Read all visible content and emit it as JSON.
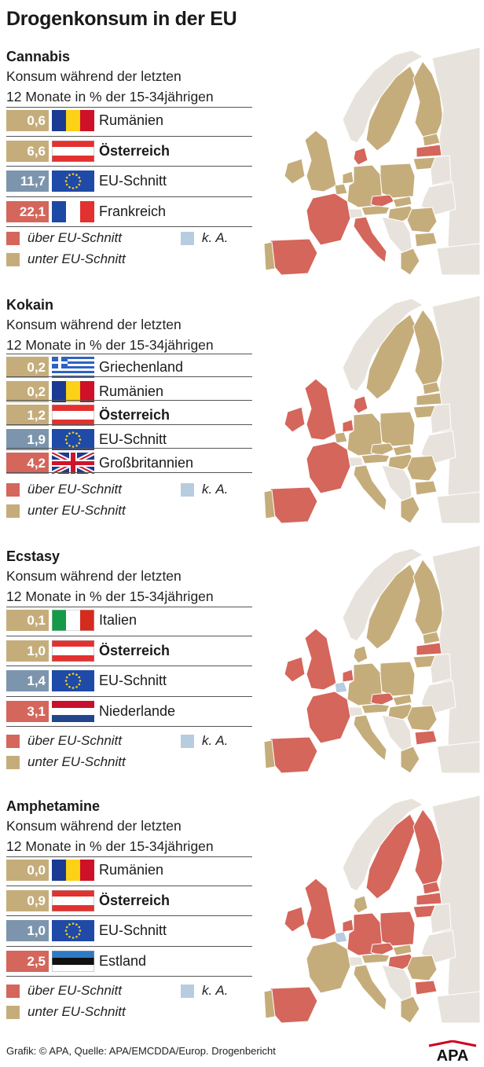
{
  "title": "Drogenkonsum in der EU",
  "footer": "Grafik: © APA, Quelle: APA/EMCDDA/Europ. Drogenbericht",
  "logo_text": "APA",
  "colors": {
    "above": "#d4665b",
    "below": "#c5ad7b",
    "eu": "#7c95ad",
    "na": "#b8cce0",
    "nonEU": "#e7e3dc"
  },
  "legend": {
    "above": "über EU-Schnitt",
    "below": "unter EU-Schnitt",
    "na": "k. A."
  },
  "chart_data": [
    {
      "type": "bar",
      "title": "Cannabis",
      "subtitle": [
        "Konsum während der letzten",
        "12 Monate in % der 15-34jährigen"
      ],
      "unit": "%",
      "rows": [
        {
          "value": "0,6",
          "label": "Rumänien",
          "flag": "romania-flag",
          "category": "below",
          "bold": false
        },
        {
          "value": "6,6",
          "label": "Österreich",
          "flag": "austria-flag",
          "category": "below",
          "bold": true
        },
        {
          "value": "11,7",
          "label": "EU-Schnitt",
          "flag": "eu-flag",
          "category": "eu",
          "bold": false
        },
        {
          "value": "22,1",
          "label": "Frankreich",
          "flag": "france-flag",
          "category": "above",
          "bold": false
        }
      ],
      "map_red": [
        "spain",
        "france",
        "italy",
        "denmark",
        "latvia",
        "czech"
      ],
      "map_na": []
    },
    {
      "type": "bar",
      "title": "Kokain",
      "subtitle": [
        "Konsum während der letzten",
        "12 Monate in % der 15-34jährigen"
      ],
      "unit": "%",
      "rows": [
        {
          "value": "0,2",
          "label": "Griechenland",
          "flag": "greece-flag",
          "category": "below",
          "bold": false
        },
        {
          "value": "0,2",
          "label": "Rumänien",
          "flag": "romania-flag",
          "category": "below",
          "bold": false
        },
        {
          "value": "1,2",
          "label": "Österreich",
          "flag": "austria-flag",
          "category": "below",
          "bold": true
        },
        {
          "value": "1,9",
          "label": "EU-Schnitt",
          "flag": "eu-flag",
          "category": "eu",
          "bold": false
        },
        {
          "value": "4,2",
          "label": "Großbritannien",
          "flag": "uk-flag",
          "category": "above",
          "bold": false
        }
      ],
      "map_red": [
        "spain",
        "france",
        "uk",
        "ireland",
        "denmark",
        "netherlands"
      ],
      "map_na": []
    },
    {
      "type": "bar",
      "title": "Ecstasy",
      "subtitle": [
        "Konsum während der letzten",
        "12 Monate in % der 15-34jährigen"
      ],
      "unit": "%",
      "rows": [
        {
          "value": "0,1",
          "label": "Italien",
          "flag": "italy-flag",
          "category": "below",
          "bold": false
        },
        {
          "value": "1,0",
          "label": "Österreich",
          "flag": "austria-flag",
          "category": "below",
          "bold": true
        },
        {
          "value": "1,4",
          "label": "EU-Schnitt",
          "flag": "eu-flag",
          "category": "eu",
          "bold": false
        },
        {
          "value": "3,1",
          "label": "Niederlande",
          "flag": "netherlands-flag",
          "category": "above",
          "bold": false
        }
      ],
      "map_red": [
        "spain",
        "france",
        "uk",
        "ireland",
        "netherlands",
        "czech",
        "latvia",
        "bulgaria"
      ],
      "map_na": [
        "belgium"
      ]
    },
    {
      "type": "bar",
      "title": "Amphetamine",
      "subtitle": [
        "Konsum während der letzten",
        "12 Monate in % der 15-34jährigen"
      ],
      "unit": "%",
      "rows": [
        {
          "value": "0,0",
          "label": "Rumänien",
          "flag": "romania-flag",
          "category": "below",
          "bold": false
        },
        {
          "value": "0,9",
          "label": "Österreich",
          "flag": "austria-flag",
          "category": "below",
          "bold": true
        },
        {
          "value": "1,0",
          "label": "EU-Schnitt",
          "flag": "eu-flag",
          "category": "eu",
          "bold": false
        },
        {
          "value": "2,5",
          "label": "Estland",
          "flag": "estonia-flag",
          "category": "above",
          "bold": false
        }
      ],
      "map_red": [
        "spain",
        "uk",
        "ireland",
        "sweden",
        "finland",
        "estonia",
        "latvia",
        "lithuania",
        "poland",
        "germany",
        "czech",
        "hungary",
        "netherlands",
        "bulgaria"
      ],
      "map_na": [
        "belgium"
      ]
    }
  ]
}
